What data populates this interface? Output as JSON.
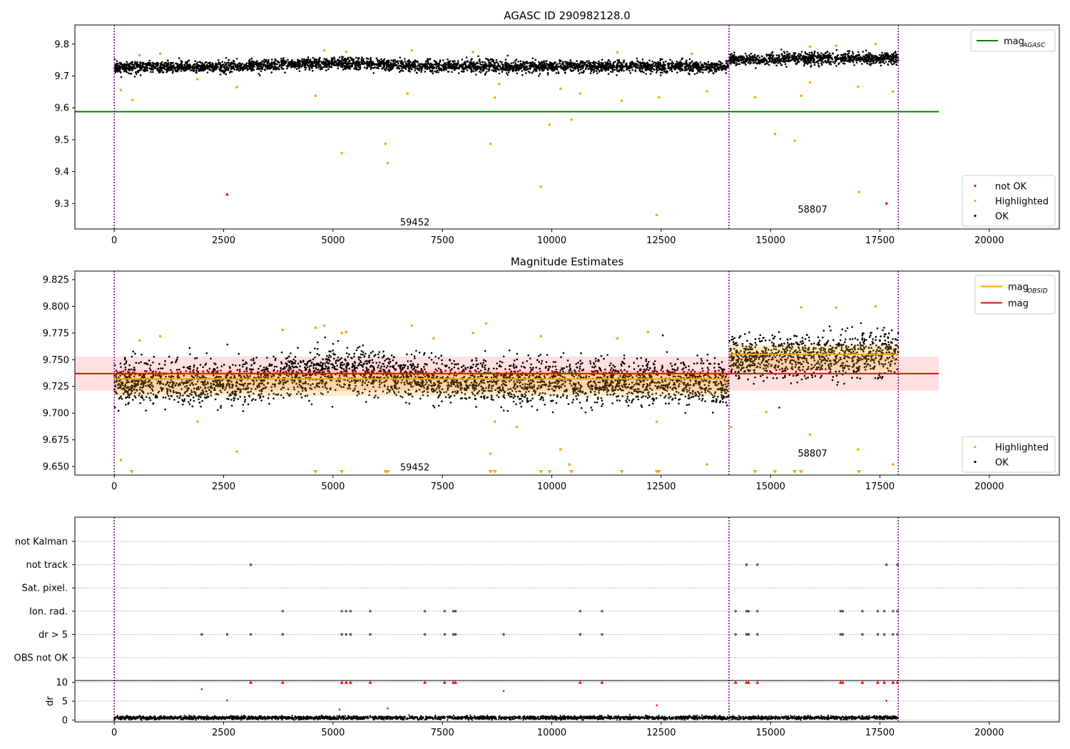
{
  "chart_data": [
    {
      "type": "scatter",
      "title": "AGASC ID 290982128.0",
      "xlabel": "",
      "ylabel": "",
      "xlim": [
        -900,
        21600
      ],
      "ylim": [
        9.22,
        9.86
      ],
      "x_ticks": [
        0,
        2500,
        5000,
        7500,
        10000,
        12500,
        15000,
        17500,
        20000
      ],
      "y_ticks": [
        9.3,
        9.4,
        9.5,
        9.6,
        9.7,
        9.8
      ],
      "grid": false,
      "vlines": [
        0,
        14050,
        17920
      ],
      "obsid_annotations": [
        {
          "text": "59452",
          "x": 6870,
          "y": 9.24
        },
        {
          "text": "58807",
          "x": 15960,
          "y": 9.28
        }
      ],
      "mag_agasc": {
        "value": 9.588,
        "x": [
          -900,
          18850
        ]
      },
      "legend_top": {
        "position": "top-right",
        "entries": [
          {
            "label": "mag",
            "sub": "AGASC",
            "color": "#008000",
            "kind": "line"
          }
        ]
      },
      "legend_bottom": {
        "position": "bottom-right",
        "entries": [
          {
            "label": "not OK",
            "color": "#ff0000",
            "kind": "dot"
          },
          {
            "label": "Highlighted",
            "color": "#ffa500",
            "kind": "dot"
          },
          {
            "label": "OK",
            "color": "#000000",
            "kind": "dot"
          }
        ]
      },
      "series": [
        {
          "name": "OK",
          "color": "#000000",
          "segments": [
            {
              "x": [
                0,
                2500,
                5000,
                7500,
                10000,
                12500,
                14040
              ],
              "y": [
                9.728,
                9.728,
                9.74,
                9.73,
                9.73,
                9.73,
                9.728
              ],
              "spread": 0.018
            },
            {
              "x": [
                14060,
                16000,
                17920
              ],
              "y": [
                9.752,
                9.754,
                9.756
              ],
              "spread": 0.018
            }
          ]
        },
        {
          "name": "Highlighted",
          "color": "#ffa500",
          "points": [
            [
              150,
              9.656
            ],
            [
              420,
              9.625
            ],
            [
              580,
              9.765
            ],
            [
              1050,
              9.77
            ],
            [
              1900,
              9.69
            ],
            [
              2800,
              9.665
            ],
            [
              4600,
              9.638
            ],
            [
              5200,
              9.458
            ],
            [
              6200,
              9.487
            ],
            [
              6250,
              9.427
            ],
            [
              6700,
              9.645
            ],
            [
              8600,
              9.487
            ],
            [
              8700,
              9.632
            ],
            [
              8800,
              9.675
            ],
            [
              9750,
              9.353
            ],
            [
              9950,
              9.547
            ],
            [
              10200,
              9.66
            ],
            [
              10450,
              9.563
            ],
            [
              10650,
              9.645
            ],
            [
              11600,
              9.622
            ],
            [
              12400,
              9.264
            ],
            [
              12450,
              9.633
            ],
            [
              13550,
              9.652
            ],
            [
              14650,
              9.633
            ],
            [
              15100,
              9.518
            ],
            [
              15550,
              9.497
            ],
            [
              15700,
              9.638
            ],
            [
              15900,
              9.68
            ],
            [
              17000,
              9.666
            ],
            [
              17020,
              9.336
            ],
            [
              17800,
              9.651
            ],
            [
              4800,
              9.78
            ],
            [
              5300,
              9.776
            ],
            [
              6800,
              9.78
            ],
            [
              8200,
              9.775
            ],
            [
              11500,
              9.774
            ],
            [
              13200,
              9.77
            ],
            [
              15900,
              9.792
            ],
            [
              16500,
              9.795
            ],
            [
              17400,
              9.8
            ]
          ]
        },
        {
          "name": "not OK",
          "color": "#ff0000",
          "points": [
            [
              2580,
              9.328
            ],
            [
              17650,
              9.3
            ]
          ]
        }
      ]
    },
    {
      "type": "scatter",
      "title": "Magnitude Estimates",
      "xlabel": "",
      "ylabel": "",
      "xlim": [
        -900,
        21600
      ],
      "ylim": [
        9.642,
        9.833
      ],
      "x_ticks": [
        0,
        2500,
        5000,
        7500,
        10000,
        12500,
        15000,
        17500,
        20000
      ],
      "y_ticks": [
        9.65,
        9.675,
        9.7,
        9.725,
        9.75,
        9.775,
        9.8,
        9.825
      ],
      "grid": false,
      "vlines": [
        0,
        14050,
        17920
      ],
      "obsid_annotations": [
        {
          "text": "59452",
          "x": 6870,
          "y": 9.649
        },
        {
          "text": "58807",
          "x": 15960,
          "y": 9.662
        }
      ],
      "mag": {
        "value": 9.737,
        "band": [
          9.721,
          9.753
        ],
        "x": [
          -900,
          18850
        ]
      },
      "mag_obsid": [
        {
          "x": [
            0,
            14050
          ],
          "value": 9.732
        },
        {
          "x": [
            14050,
            17920
          ],
          "value": 9.755
        }
      ],
      "legend_top": {
        "position": "top-right",
        "entries": [
          {
            "label": "mag",
            "sub": "OBSID",
            "color": "#ffa500",
            "kind": "line"
          },
          {
            "label": "mag",
            "sub": "",
            "color": "#ff0000",
            "kind": "line"
          }
        ]
      },
      "legend_bottom": {
        "position": "bottom-right",
        "entries": [
          {
            "label": "Highlighted",
            "color": "#ffa500",
            "kind": "dot"
          },
          {
            "label": "OK",
            "color": "#000000",
            "kind": "dot"
          }
        ]
      },
      "series": [
        {
          "name": "OK",
          "color": "#000000",
          "segments": [
            {
              "x": [
                0,
                2500,
                5000,
                7500,
                10000,
                12500,
                14040
              ],
              "y": [
                9.728,
                9.728,
                9.74,
                9.73,
                9.73,
                9.73,
                9.728
              ],
              "spread": 0.02
            },
            {
              "x": [
                14060,
                16000,
                17920
              ],
              "y": [
                9.752,
                9.754,
                9.756
              ],
              "spread": 0.02
            }
          ]
        },
        {
          "name": "Highlighted",
          "color": "#ffa500",
          "points": [
            [
              150,
              9.656
            ],
            [
              580,
              9.768
            ],
            [
              1050,
              9.772
            ],
            [
              1900,
              9.692
            ],
            [
              2800,
              9.664
            ],
            [
              3850,
              9.778
            ],
            [
              4600,
              9.78
            ],
            [
              4800,
              9.782
            ],
            [
              5200,
              9.775
            ],
            [
              5300,
              9.776
            ],
            [
              6800,
              9.782
            ],
            [
              7300,
              9.77
            ],
            [
              8200,
              9.775
            ],
            [
              8500,
              9.784
            ],
            [
              8600,
              9.662
            ],
            [
              8700,
              9.692
            ],
            [
              9200,
              9.687
            ],
            [
              9750,
              9.772
            ],
            [
              10200,
              9.666
            ],
            [
              10400,
              9.652
            ],
            [
              11500,
              9.77
            ],
            [
              12200,
              9.776
            ],
            [
              12400,
              9.692
            ],
            [
              13550,
              9.652
            ],
            [
              14100,
              9.687
            ],
            [
              14900,
              9.701
            ],
            [
              15700,
              9.799
            ],
            [
              15900,
              9.68
            ],
            [
              16500,
              9.799
            ],
            [
              17000,
              9.666
            ],
            [
              17400,
              9.8
            ],
            [
              17800,
              9.652
            ]
          ],
          "offscale": [
            400,
            4600,
            5200,
            6200,
            6250,
            8600,
            8700,
            9750,
            9950,
            10450,
            11600,
            12400,
            12450,
            14650,
            15100,
            15550,
            15700,
            17020
          ]
        }
      ]
    },
    {
      "type": "scatter",
      "title": "",
      "xlabel": "",
      "ylabel": "",
      "xlim": [
        -900,
        21600
      ],
      "x_ticks": [
        0,
        2500,
        5000,
        7500,
        10000,
        12500,
        15000,
        17500,
        20000
      ],
      "vlines": [
        0,
        14050,
        17920
      ],
      "flag_rows": [
        "not Kalman",
        "not track",
        "Sat. pixel.",
        "Ion. rad.",
        "dr > 5",
        "OBS not OK"
      ],
      "flags": {
        "not Kalman": [],
        "not track": [
          3120,
          14450,
          14700,
          17650,
          17900
        ],
        "Sat. pixel.": [],
        "Ion. rad.": [
          3850,
          5200,
          5300,
          5400,
          5850,
          7100,
          7550,
          7750,
          7800,
          10650,
          11150,
          14200,
          14450,
          14500,
          14700,
          16600,
          16650,
          17100,
          17450,
          17600,
          17800,
          17900
        ],
        "dr > 5": [
          2000,
          2580,
          3120,
          3850,
          5200,
          5300,
          5400,
          5850,
          7100,
          7550,
          7750,
          7800,
          8900,
          10650,
          11150,
          14200,
          14450,
          14500,
          14700,
          16600,
          16650,
          17100,
          17450,
          17600,
          17800,
          17900
        ],
        "OBS not OK": []
      },
      "dr": {
        "ylabel": "dr",
        "ylim": [
          -0.5,
          10.5
        ],
        "y_ticks": [
          0,
          5,
          10
        ],
        "cap": 10,
        "capped": [
          3120,
          3850,
          5200,
          5300,
          5400,
          5850,
          7100,
          7550,
          7750,
          7800,
          10650,
          11150,
          14200,
          14450,
          14500,
          14700,
          16600,
          16650,
          17100,
          17450,
          17600,
          17800,
          17900
        ],
        "outliers": [
          [
            2000,
            8.2
          ],
          [
            2580,
            5.2
          ],
          [
            5150,
            2.8
          ],
          [
            6250,
            3.1
          ],
          [
            8900,
            7.7
          ],
          [
            12400,
            3.9
          ],
          [
            17650,
            5.1
          ]
        ],
        "baseline": {
          "x": [
            [
              0,
              14040
            ],
            [
              14060,
              17920
            ]
          ],
          "mean": 0.6,
          "spread": 0.45
        }
      }
    }
  ]
}
